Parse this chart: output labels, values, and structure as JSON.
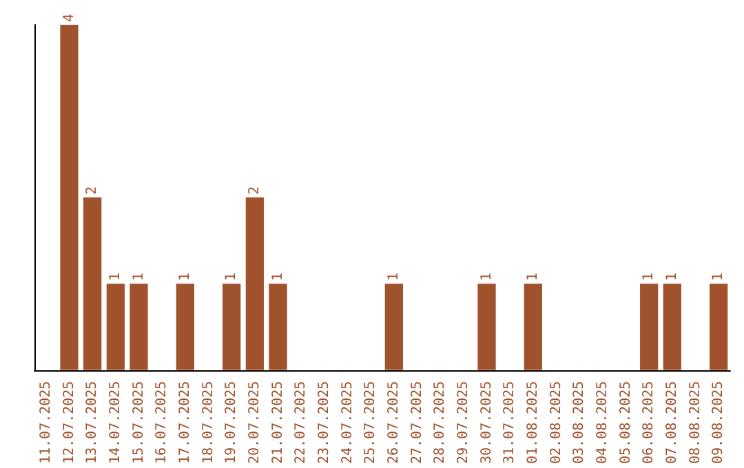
{
  "chart_data": {
    "type": "bar",
    "categories": [
      "11.07.2025",
      "12.07.2025",
      "13.07.2025",
      "14.07.2025",
      "15.07.2025",
      "16.07.2025",
      "17.07.2025",
      "18.07.2025",
      "19.07.2025",
      "20.07.2025",
      "21.07.2025",
      "22.07.2025",
      "23.07.2025",
      "24.07.2025",
      "25.07.2025",
      "26.07.2025",
      "27.07.2025",
      "28.07.2025",
      "29.07.2025",
      "30.07.2025",
      "31.07.2025",
      "01.08.2025",
      "02.08.2025",
      "03.08.2025",
      "04.08.2025",
      "05.08.2025",
      "06.08.2025",
      "07.08.2025",
      "08.08.2025",
      "09.08.2025"
    ],
    "values": [
      0,
      4,
      2,
      1,
      1,
      0,
      1,
      0,
      1,
      2,
      1,
      0,
      0,
      0,
      0,
      1,
      0,
      0,
      0,
      1,
      0,
      1,
      0,
      0,
      0,
      0,
      1,
      1,
      0,
      1
    ],
    "value_labels": [
      null,
      "4",
      "2",
      "1",
      "1",
      null,
      "1",
      null,
      "1",
      "2",
      "1",
      null,
      null,
      null,
      null,
      "1",
      null,
      null,
      null,
      "1",
      null,
      "1",
      null,
      null,
      null,
      null,
      "1",
      "1",
      null,
      "1"
    ],
    "color": "#a0522d",
    "grid": false,
    "tick_labels": "x"
  }
}
